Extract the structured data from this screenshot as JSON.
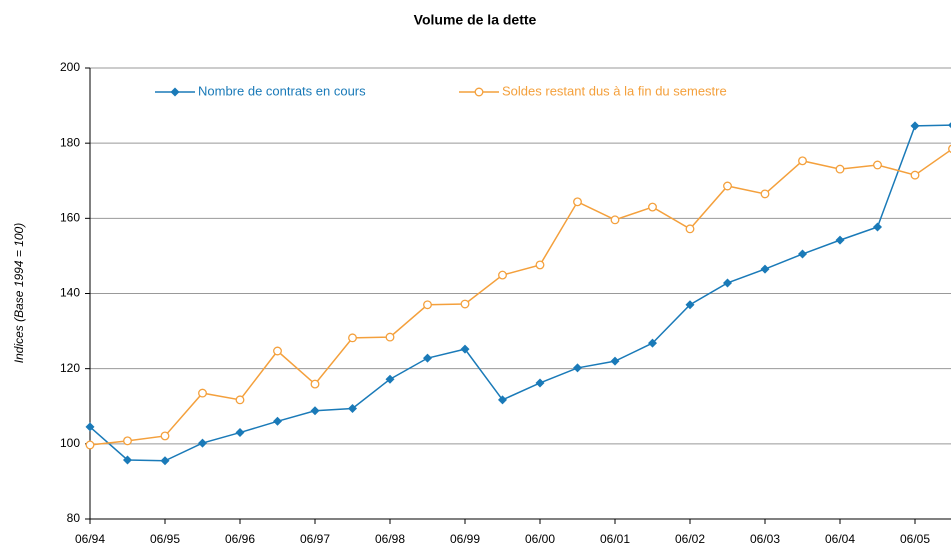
{
  "chart_data": {
    "type": "line",
    "title": "Volume de la dette",
    "y_label": "Indices (Base 1994 = 100)",
    "categories": [
      "06/94",
      null,
      "06/95",
      null,
      "06/96",
      null,
      "06/97",
      null,
      "06/98",
      null,
      "06/99",
      null,
      "06/00",
      null,
      "06/01",
      null,
      "06/02",
      null,
      "06/03",
      null,
      "06/04",
      null,
      "06/05",
      null
    ],
    "series": [
      {
        "name": "Nombre de contrats en cours",
        "color": "#1a7ab8",
        "marker": "diamond",
        "values": [
          104.5,
          95.7,
          95.5,
          100.2,
          103,
          106,
          108.8,
          109.4,
          117.2,
          122.8,
          125.2,
          111.7,
          116.2,
          120.2,
          122,
          126.8,
          137,
          142.8,
          146.5,
          150.5,
          154.2,
          157.7,
          184.6,
          184.8
        ]
      },
      {
        "name": "Soldes restant dus à la fin du semestre",
        "color": "#f4a03c",
        "marker": "circle",
        "values": [
          99.7,
          100.8,
          102.1,
          113.5,
          111.7,
          124.7,
          115.9,
          128.2,
          128.4,
          137,
          137.2,
          144.9,
          147.6,
          164.4,
          159.6,
          163,
          157.2,
          168.6,
          166.5,
          175.3,
          173.1,
          174.2,
          171.5,
          178.5
        ]
      }
    ],
    "ylim": [
      80,
      200
    ],
    "yticks": [
      80,
      100,
      120,
      140,
      160,
      180,
      200
    ],
    "grid": true
  }
}
